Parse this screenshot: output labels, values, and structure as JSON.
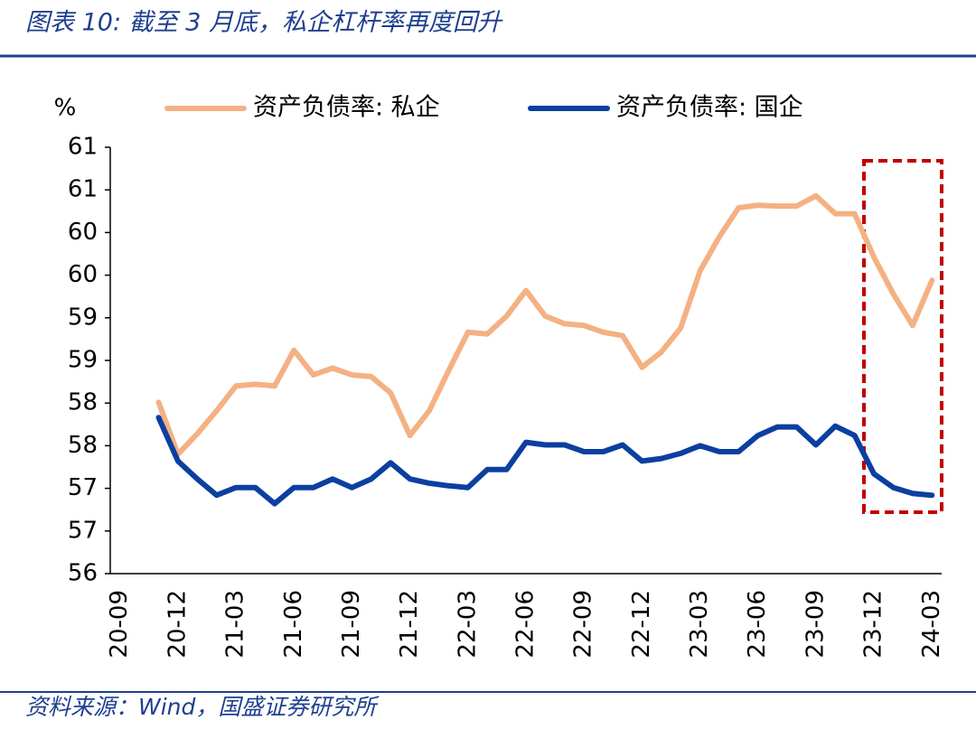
{
  "chart_data": {
    "type": "line",
    "title": "图表 10:  截至 3 月底，私企杠杆率再度回升",
    "source": "资料来源：Wind，国盛证券研究所",
    "y_unit": "%",
    "categories": [
      "20-09",
      null,
      null,
      "20-12",
      null,
      null,
      "21-03",
      null,
      null,
      "21-06",
      null,
      null,
      "21-09",
      null,
      null,
      "21-12",
      null,
      null,
      "22-03",
      null,
      null,
      "22-06",
      null,
      null,
      "22-09",
      null,
      null,
      "22-12",
      null,
      null,
      "23-03",
      null,
      null,
      "23-06",
      null,
      null,
      "23-09",
      null,
      null,
      "23-12",
      null,
      null,
      "24-03"
    ],
    "series": [
      {
        "name": "资产负债率: 私企",
        "color": "#f4b183",
        "values": [
          null,
          null,
          58.01,
          57.4,
          57.64,
          57.91,
          58.2,
          58.22,
          58.2,
          58.62,
          58.33,
          58.41,
          58.33,
          58.31,
          58.12,
          57.62,
          57.91,
          58.38,
          58.83,
          58.81,
          59.02,
          59.32,
          59.02,
          58.93,
          58.91,
          58.83,
          58.79,
          58.42,
          58.6,
          58.88,
          59.55,
          59.95,
          60.29,
          60.32,
          60.31,
          60.31,
          60.43,
          60.22,
          60.22,
          59.71,
          59.28,
          58.91,
          59.44
        ]
      },
      {
        "name": "资产负债率: 国企",
        "color": "#0b3fa0",
        "values": [
          null,
          null,
          57.83,
          57.32,
          57.11,
          56.92,
          57.01,
          57.01,
          56.82,
          57.01,
          57.01,
          57.11,
          57.01,
          57.11,
          57.3,
          57.11,
          57.06,
          57.03,
          57.01,
          57.22,
          57.22,
          57.54,
          57.51,
          57.51,
          57.43,
          57.43,
          57.51,
          57.32,
          57.35,
          57.41,
          57.5,
          57.43,
          57.43,
          57.62,
          57.72,
          57.72,
          57.51,
          57.73,
          57.62,
          57.17,
          57.01,
          56.94,
          56.92
        ]
      }
    ],
    "ylim": [
      56,
      61
    ],
    "yticks": [
      56,
      {
        "value": 56.5,
        "label": "57"
      },
      57,
      {
        "value": 57.5,
        "label": "58"
      },
      58,
      {
        "value": 58.5,
        "label": "59"
      },
      59,
      {
        "value": 59.5,
        "label": "60"
      },
      60,
      {
        "value": 60.5,
        "label": "61"
      },
      61
    ],
    "grid": false,
    "legend": "top"
  }
}
